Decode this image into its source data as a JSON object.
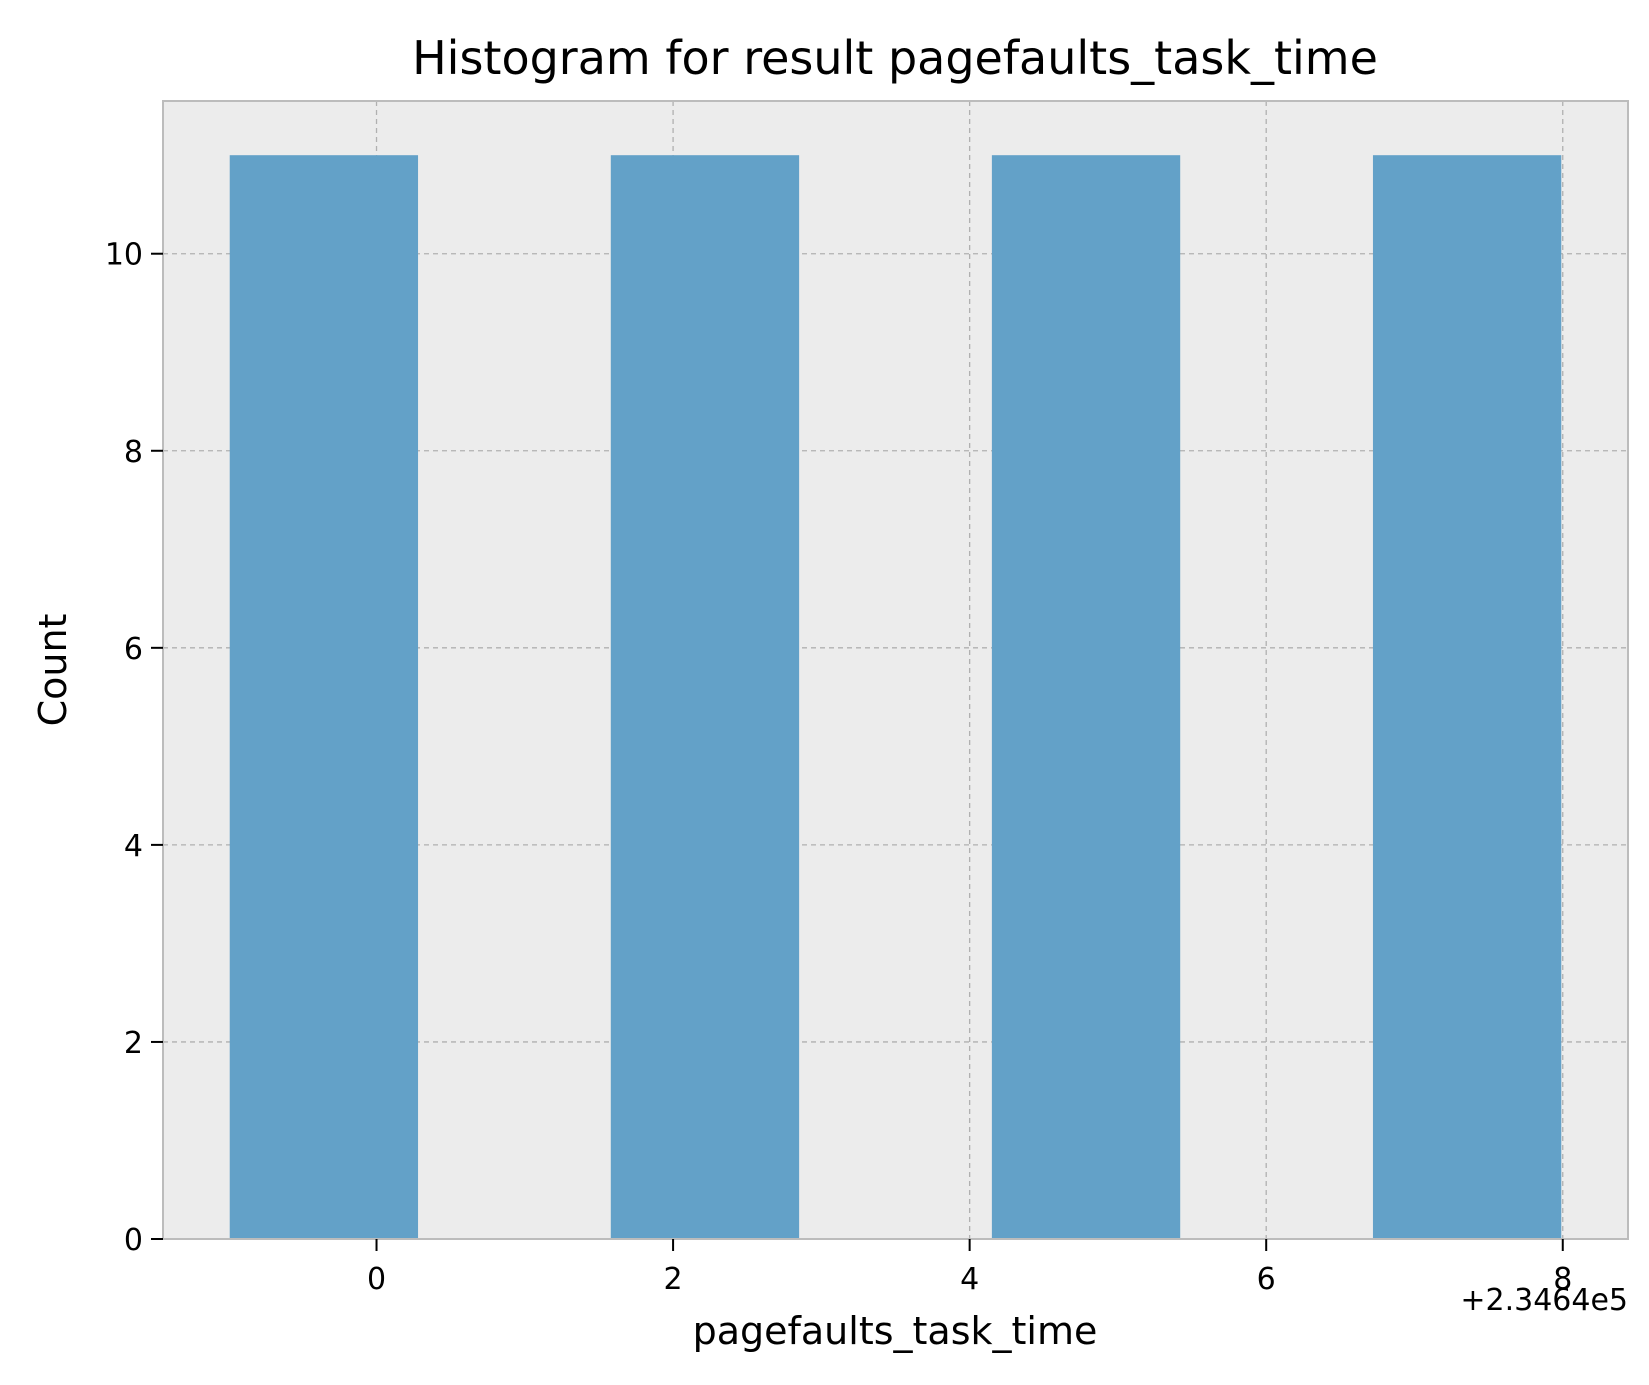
{
  "chart_data": {
    "type": "bar",
    "title": "Histogram for result pagefaults_task_time",
    "xlabel": "pagefaults_task_time",
    "ylabel": "Count",
    "x_offset_label": "+2.3464e5",
    "bins": [
      {
        "x_start": -0.99,
        "x_end": 0.28,
        "count": 11
      },
      {
        "x_start": 1.58,
        "x_end": 2.85,
        "count": 11
      },
      {
        "x_start": 4.15,
        "x_end": 5.42,
        "count": 11
      },
      {
        "x_start": 6.72,
        "x_end": 7.99,
        "count": 11
      }
    ],
    "xlim": [
      -1.44,
      8.44
    ],
    "ylim": [
      0,
      11.55
    ],
    "xticks": [
      0,
      2,
      4,
      6,
      8
    ],
    "xtick_labels": [
      "0",
      "2",
      "4",
      "6",
      "8"
    ],
    "yticks": [
      0,
      2,
      4,
      6,
      8,
      10
    ],
    "ytick_labels": [
      "0",
      "2",
      "4",
      "6",
      "8",
      "10"
    ],
    "grid": true,
    "colors": {
      "bar": "#63a1c8",
      "plot_background": "#ececec",
      "grid": "#b0b0b0",
      "spine": "#bcbcbc"
    }
  }
}
